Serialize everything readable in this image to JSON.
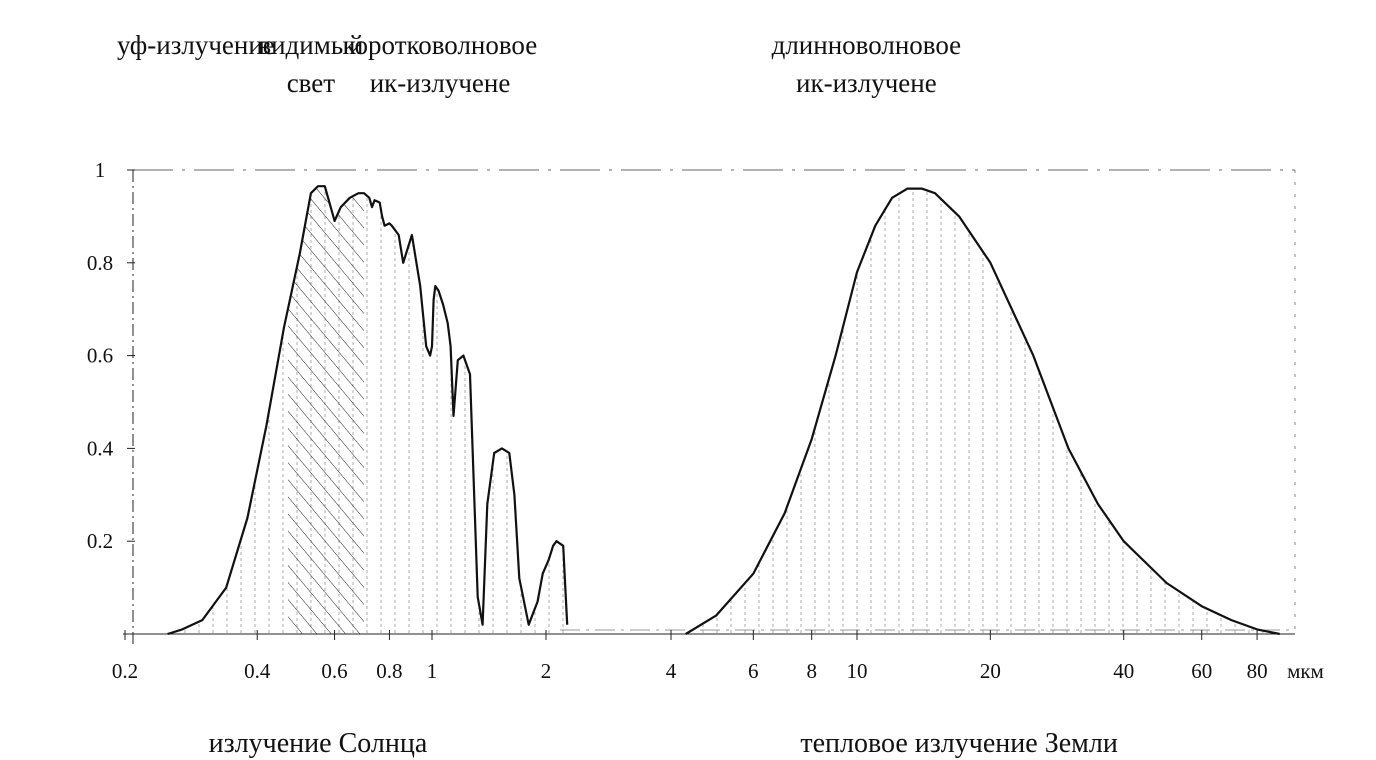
{
  "chart_data": {
    "type": "area",
    "x_scale": "log",
    "xlim": [
      0.2,
      100
    ],
    "ylim": [
      0,
      1
    ],
    "x_ticks": [
      "0.2",
      "0.4",
      "0.6",
      "0.8",
      "1",
      "2",
      "4",
      "6",
      "8",
      "10",
      "20",
      "40",
      "60",
      "80"
    ],
    "x_unit": "мкм",
    "y_ticks": [
      "0.2",
      "0.4",
      "0.6",
      "0.8",
      "1"
    ],
    "band_labels": [
      {
        "lines": [
          "уф-излучение"
        ],
        "x": 0.29
      },
      {
        "lines": [
          "видимый",
          "свет"
        ],
        "x": 0.53
      },
      {
        "lines": [
          "коротковолновое",
          "ик-излучене"
        ],
        "x": 1.05
      },
      {
        "lines": [
          "длинноволновое",
          "ик-излучене"
        ],
        "x": 10.5
      }
    ],
    "hatched_band": [
      0.47,
      0.7
    ],
    "series": [
      {
        "name": "излучение Солнца",
        "x": [
          0.25,
          0.27,
          0.3,
          0.34,
          0.38,
          0.42,
          0.46,
          0.5,
          0.53,
          0.55,
          0.57,
          0.58,
          0.6,
          0.62,
          0.65,
          0.68,
          0.7,
          0.72,
          0.73,
          0.74,
          0.76,
          0.77,
          0.78,
          0.8,
          0.81,
          0.84,
          0.86,
          0.9,
          0.94,
          0.97,
          0.99,
          1.0,
          1.01,
          1.02,
          1.04,
          1.07,
          1.1,
          1.12,
          1.14,
          1.17,
          1.21,
          1.26,
          1.32,
          1.36,
          1.4,
          1.46,
          1.53,
          1.6,
          1.65,
          1.7,
          1.8,
          1.9,
          1.96,
          2.03,
          2.08,
          2.12,
          2.2,
          2.25
        ],
        "y": [
          0.0,
          0.01,
          0.03,
          0.1,
          0.25,
          0.45,
          0.66,
          0.82,
          0.95,
          0.965,
          0.965,
          0.94,
          0.89,
          0.92,
          0.94,
          0.95,
          0.95,
          0.94,
          0.92,
          0.935,
          0.93,
          0.9,
          0.88,
          0.885,
          0.88,
          0.86,
          0.8,
          0.86,
          0.75,
          0.62,
          0.6,
          0.62,
          0.72,
          0.75,
          0.74,
          0.71,
          0.67,
          0.62,
          0.47,
          0.59,
          0.6,
          0.56,
          0.08,
          0.02,
          0.28,
          0.39,
          0.4,
          0.39,
          0.3,
          0.12,
          0.02,
          0.07,
          0.13,
          0.16,
          0.19,
          0.2,
          0.19,
          0.02
        ]
      },
      {
        "name": "тепловое излучение Земли",
        "x": [
          4.3,
          5,
          6,
          7,
          8,
          9,
          10,
          11,
          12,
          13,
          14,
          15,
          17,
          20,
          25,
          30,
          35,
          40,
          50,
          60,
          70,
          80,
          90
        ],
        "y": [
          0.0,
          0.04,
          0.13,
          0.26,
          0.42,
          0.6,
          0.78,
          0.88,
          0.94,
          0.96,
          0.96,
          0.95,
          0.9,
          0.8,
          0.6,
          0.4,
          0.28,
          0.2,
          0.11,
          0.06,
          0.03,
          0.01,
          0.0
        ]
      }
    ],
    "group_labels": [
      {
        "text": "излучение  Солнца",
        "x": 0.55
      },
      {
        "text": "тепловое  излучение  Земли",
        "x": 17
      }
    ]
  }
}
